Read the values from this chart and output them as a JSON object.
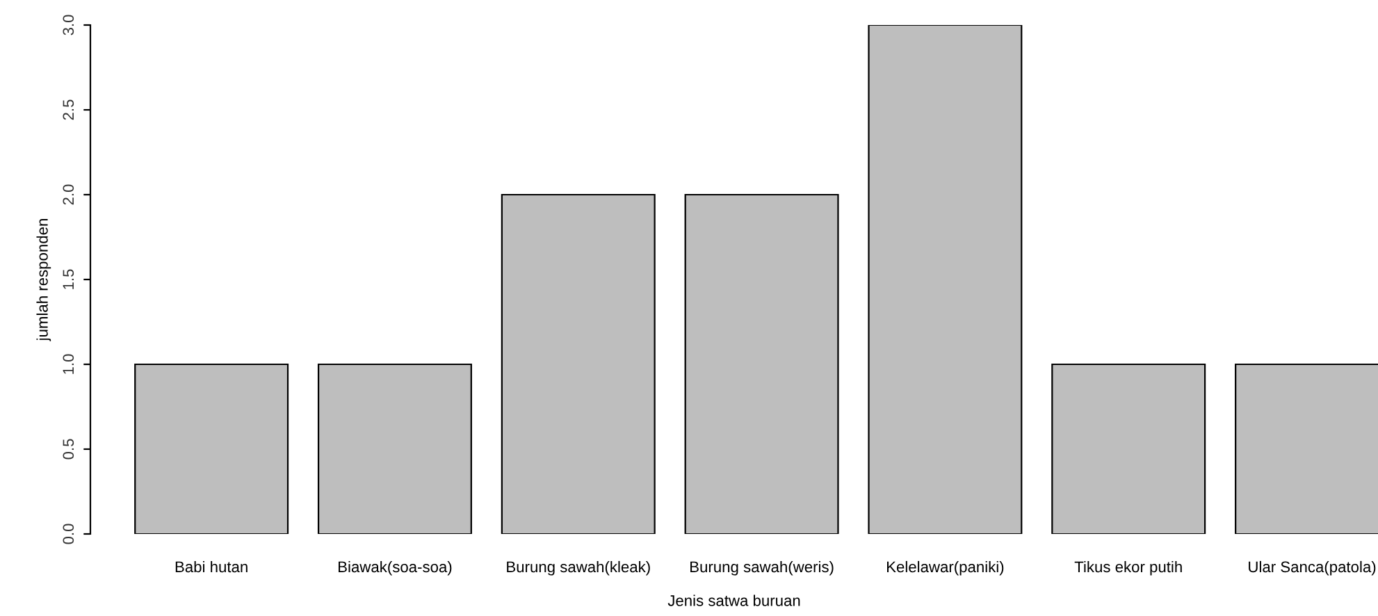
{
  "chart_data": {
    "type": "bar",
    "xlabel": "Jenis satwa buruan",
    "ylabel": "jumlah responden",
    "categories": [
      "Babi hutan",
      "Biawak(soa-soa)",
      "Burung sawah(kleak)",
      "Burung sawah(weris)",
      "Kelelawar(paniki)",
      "Tikus ekor putih",
      "Ular Sanca(patola)"
    ],
    "values": [
      1,
      1,
      2,
      2,
      3,
      1,
      1
    ],
    "color": "#bebebe",
    "ylim": [
      0,
      3
    ],
    "yticks": [
      {
        "value": 0,
        "label": "0.0"
      },
      {
        "value": 0.5,
        "label": "0.5"
      },
      {
        "value": 1,
        "label": "1.0"
      },
      {
        "value": 1.5,
        "label": "1.5"
      },
      {
        "value": 2,
        "label": "2.0"
      },
      {
        "value": 2.5,
        "label": "2.5"
      },
      {
        "value": 3,
        "label": "3.0"
      }
    ],
    "grid": false,
    "legend": false
  }
}
